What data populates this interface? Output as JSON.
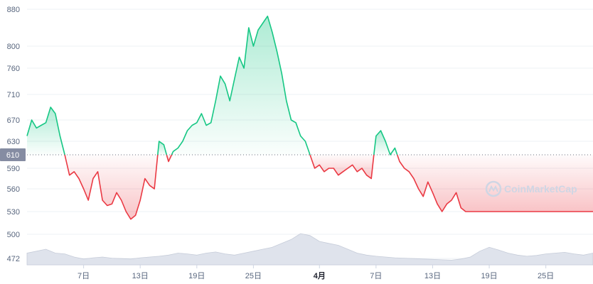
{
  "chart_data": {
    "type": "line",
    "title": "",
    "xlabel": "",
    "ylabel": "",
    "ylim": [
      472,
      880
    ],
    "y_ticks": [
      472,
      500,
      530,
      560,
      590,
      630,
      670,
      710,
      760,
      800,
      880
    ],
    "x_ticks": [
      {
        "label": "7日",
        "day": 7,
        "bold": false
      },
      {
        "label": "13日",
        "day": 13,
        "bold": false
      },
      {
        "label": "19日",
        "day": 19,
        "bold": false
      },
      {
        "label": "25日",
        "day": 25,
        "bold": false
      },
      {
        "label": "4月",
        "day": 32,
        "bold": true
      },
      {
        "label": "7日",
        "day": 38,
        "bold": false
      },
      {
        "label": "13日",
        "day": 44,
        "bold": false
      },
      {
        "label": "19日",
        "day": 50,
        "bold": false
      },
      {
        "label": "25日",
        "day": 56,
        "bold": false
      }
    ],
    "baseline": {
      "value": 610,
      "label": "610"
    },
    "colors": {
      "up": "#16c784",
      "down": "#ea3943",
      "baseline_tag": "#858ca2",
      "volume": "#dfe3ec"
    },
    "watermark": "CoinMarketCap",
    "series": [
      {
        "x": [
          1,
          1.5,
          2,
          2.5,
          3,
          3.5,
          4,
          4.5,
          5,
          5.5,
          6,
          6.5,
          7,
          7.5,
          8,
          8.5,
          9,
          9.5,
          10,
          10.5,
          11,
          11.5,
          12,
          12.5,
          13,
          13.5,
          14,
          14.5,
          15,
          15.5,
          16,
          16.5,
          17,
          17.5,
          18,
          18.5,
          19,
          19.5,
          20,
          20.5,
          21,
          21.5,
          22,
          22.5,
          23,
          23.5,
          24,
          24.5,
          25,
          25.5,
          26,
          26.5,
          27,
          27.5,
          28,
          28.5,
          29,
          29.5,
          30,
          30.5,
          31,
          31.5,
          32,
          32.5,
          33,
          33.5,
          34,
          34.5,
          35,
          35.5,
          36,
          36.5,
          37,
          37.5,
          38,
          38.5,
          39,
          39.5,
          40,
          40.5,
          41,
          41.5,
          42,
          42.5,
          43,
          43.5,
          44,
          44.5,
          45,
          45.5,
          46,
          46.5,
          47,
          47.5,
          48,
          48.5,
          49,
          49.5,
          50,
          50.5,
          51,
          51.5,
          52,
          52.5,
          53,
          53.5,
          54,
          54.5,
          55,
          55.5,
          56,
          56.5,
          57,
          57.5,
          58,
          58.5,
          59,
          59.5,
          60,
          60.5,
          61
        ],
        "y": [
          640,
          670,
          655,
          660,
          665,
          690,
          680,
          640,
          610,
          580,
          585,
          575,
          560,
          545,
          575,
          585,
          545,
          538,
          540,
          555,
          545,
          530,
          520,
          525,
          545,
          575,
          565,
          560,
          630,
          625,
          600,
          615,
          620,
          630,
          650,
          660,
          665,
          680,
          660,
          665,
          700,
          745,
          730,
          700,
          740,
          780,
          760,
          840,
          800,
          835,
          850,
          865,
          830,
          790,
          750,
          700,
          670,
          665,
          640,
          630,
          610,
          590,
          595,
          585,
          590,
          590,
          580,
          585,
          590,
          595,
          585,
          590,
          580,
          575,
          640,
          650,
          630,
          610,
          620,
          600,
          590,
          585,
          575,
          560,
          550,
          570,
          555,
          540,
          530,
          540,
          545,
          555,
          535,
          530,
          530,
          530,
          530,
          530,
          530,
          530,
          530,
          530,
          530,
          530,
          530,
          530,
          530,
          530,
          530,
          530,
          530,
          530,
          530,
          530,
          530,
          530,
          530,
          530,
          530,
          530,
          530
        ]
      }
    ],
    "volume": [
      0.3,
      0.35,
      0.4,
      0.3,
      0.28,
      0.2,
      0.15,
      0.18,
      0.2,
      0.17,
      0.16,
      0.15,
      0.18,
      0.2,
      0.22,
      0.25,
      0.3,
      0.28,
      0.25,
      0.3,
      0.33,
      0.28,
      0.25,
      0.3,
      0.35,
      0.4,
      0.45,
      0.55,
      0.65,
      0.8,
      0.75,
      0.6,
      0.55,
      0.5,
      0.4,
      0.3,
      0.25,
      0.22,
      0.2,
      0.18,
      0.17,
      0.16,
      0.15,
      0.14,
      0.13,
      0.12,
      0.15,
      0.2,
      0.35,
      0.45,
      0.38,
      0.3,
      0.25,
      0.22,
      0.24,
      0.28,
      0.3,
      0.32,
      0.28,
      0.25,
      0.3
    ]
  }
}
